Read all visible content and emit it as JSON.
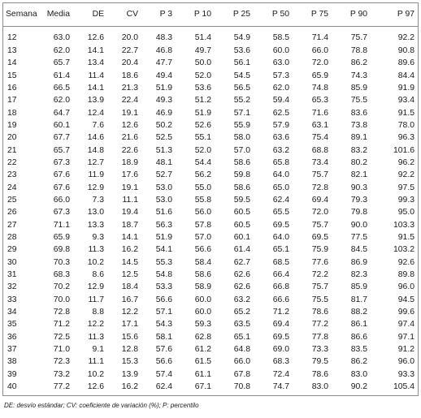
{
  "table": {
    "headers": [
      "Semana",
      "Media",
      "DE",
      "CV",
      "P 3",
      "P 10",
      "P 25",
      "P 50",
      "P 75",
      "P 90",
      "P 97"
    ],
    "rows": [
      [
        "12",
        "63.0",
        "12.6",
        "20.0",
        "48.3",
        "51.4",
        "54.9",
        "58.5",
        "71.4",
        "75.7",
        "92.2"
      ],
      [
        "13",
        "62.0",
        "14.1",
        "22.7",
        "46.8",
        "49.7",
        "53.6",
        "60.0",
        "66.0",
        "78.8",
        "90.8"
      ],
      [
        "14",
        "65.7",
        "13.4",
        "20.4",
        "47.7",
        "50.0",
        "56.1",
        "63.0",
        "72.0",
        "86.2",
        "89.6"
      ],
      [
        "15",
        "61.4",
        "11.4",
        "18.6",
        "49.4",
        "52.0",
        "54.5",
        "57.3",
        "65.9",
        "74.3",
        "84.4"
      ],
      [
        "16",
        "66.5",
        "14.1",
        "21.3",
        "51.9",
        "53.6",
        "56.5",
        "62.0",
        "74.8",
        "85.9",
        "91.9"
      ],
      [
        "17",
        "62.0",
        "13.9",
        "22.4",
        "49.3",
        "51.2",
        "55.2",
        "59.4",
        "65.3",
        "75.5",
        "93.4"
      ],
      [
        "18",
        "64.7",
        "12.4",
        "19.1",
        "46.9",
        "51.9",
        "57.1",
        "62.5",
        "71.6",
        "83.6",
        "91.5"
      ],
      [
        "19",
        "60.1",
        "7.6",
        "12.6",
        "50.2",
        "52.6",
        "55.9",
        "57.9",
        "63.1",
        "73.8",
        "78.0"
      ],
      [
        "20",
        "67.7",
        "14.6",
        "21.6",
        "52.5",
        "55.1",
        "58.0",
        "63.6",
        "75.4",
        "89.1",
        "96.3"
      ],
      [
        "21",
        "65.7",
        "14.8",
        "22.6",
        "51.3",
        "52.0",
        "57.0",
        "63.2",
        "68.8",
        "83.2",
        "101.6"
      ],
      [
        "22",
        "67.3",
        "12.7",
        "18.9",
        "48.1",
        "54.4",
        "58.6",
        "65.8",
        "73.4",
        "80.2",
        "96.2"
      ],
      [
        "23",
        "67.6",
        "11.9",
        "17.6",
        "52.7",
        "56.2",
        "59.8",
        "64.0",
        "75.7",
        "82.1",
        "92.2"
      ],
      [
        "24",
        "67.6",
        "12.9",
        "19.1",
        "53.0",
        "55.0",
        "58.6",
        "65.0",
        "72.8",
        "90.3",
        "97.5"
      ],
      [
        "25",
        "66.0",
        "7.3",
        "11.1",
        "53.0",
        "55.8",
        "59.5",
        "62.4",
        "69.4",
        "79.3",
        "99.3"
      ],
      [
        "26",
        "67.3",
        "13.0",
        "19.4",
        "51.6",
        "56.0",
        "60.5",
        "65.5",
        "72.0",
        "79.8",
        "95.0"
      ],
      [
        "27",
        "71.1",
        "13.3",
        "18.7",
        "56.3",
        "57.8",
        "60.5",
        "69.5",
        "75.7",
        "90.0",
        "103.3"
      ],
      [
        "28",
        "65.9",
        "9.3",
        "14.1",
        "51.9",
        "57.0",
        "60.1",
        "64.0",
        "69.5",
        "77.5",
        "91.5"
      ],
      [
        "29",
        "69.8",
        "11.3",
        "16.2",
        "54.1",
        "56.6",
        "61.4",
        "65.1",
        "75.9",
        "84.5",
        "103.2"
      ],
      [
        "30",
        "70.3",
        "10.2",
        "14.5",
        "55.3",
        "58.4",
        "62.7",
        "68.5",
        "77.6",
        "86.9",
        "92.6"
      ],
      [
        "31",
        "68.3",
        "8.6",
        "12.5",
        "54.8",
        "58.6",
        "62.6",
        "66.4",
        "72.2",
        "82.3",
        "89.8"
      ],
      [
        "32",
        "70.2",
        "12.9",
        "18.4",
        "53.3",
        "58.9",
        "62.6",
        "66.8",
        "75.7",
        "85.9",
        "96.0"
      ],
      [
        "33",
        "70.0",
        "11.7",
        "16.7",
        "56.6",
        "60.0",
        "63.2",
        "66.6",
        "75.5",
        "81.7",
        "94.5"
      ],
      [
        "34",
        "72.8",
        "8.8",
        "12.2",
        "57.1",
        "60.0",
        "65.2",
        "71.2",
        "78.6",
        "88.2",
        "99.6"
      ],
      [
        "35",
        "71.2",
        "12.2",
        "17.1",
        "54.3",
        "59.3",
        "63.5",
        "69.4",
        "77.2",
        "86.1",
        "97.4"
      ],
      [
        "36",
        "72.5",
        "11.3",
        "15.6",
        "58.1",
        "62.8",
        "65.1",
        "69.5",
        "77.8",
        "86.6",
        "97.1"
      ],
      [
        "37",
        "71.0",
        "9.1",
        "12.8",
        "57.6",
        "61.2",
        "64.8",
        "69.0",
        "73.3",
        "83.5",
        "91.2"
      ],
      [
        "38",
        "72.3",
        "11.1",
        "15.3",
        "56.6",
        "61.5",
        "66.0",
        "68.3",
        "79.5",
        "86.2",
        "96.0"
      ],
      [
        "39",
        "73.2",
        "10.2",
        "13.9",
        "57.4",
        "61.1",
        "67.8",
        "72.4",
        "78.6",
        "83.0",
        "93.3"
      ],
      [
        "40",
        "77.2",
        "12.6",
        "16.2",
        "62.4",
        "67.1",
        "70.8",
        "74.7",
        "83.0",
        "90.2",
        "105.4"
      ]
    ]
  },
  "footnote": "DE: desvío estándar; CV: coeficiente de variación (%); P: percentilo"
}
